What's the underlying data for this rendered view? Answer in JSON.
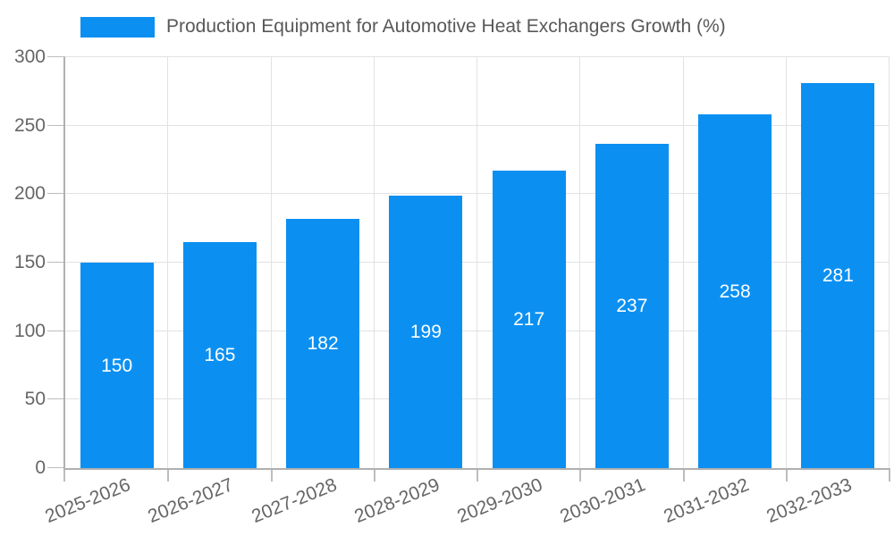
{
  "chart_data": {
    "type": "bar",
    "title": "Production Equipment for Automotive Heat Exchangers Growth (%)",
    "categories": [
      "2025-2026",
      "2026-2027",
      "2027-2028",
      "2028-2029",
      "2029-2030",
      "2030-2031",
      "2031-2032",
      "2032-2033"
    ],
    "series": [
      {
        "name": "Production Equipment for Automotive Heat Exchangers Growth (%)",
        "values": [
          150,
          165,
          182,
          199,
          217,
          237,
          258,
          281
        ]
      }
    ],
    "xlabel": "",
    "ylabel": "",
    "ylim": [
      0,
      300
    ],
    "yticks": [
      0,
      50,
      100,
      150,
      200,
      250,
      300
    ],
    "grid": true,
    "legend_position": "top",
    "bar_labels_visible": true,
    "colors": {
      "bar": "#0b90f2",
      "bar_label": "#ffffff",
      "grid": "#e2e2e2",
      "axis": "#b0b0b0",
      "tick": "#bdbdbd",
      "tick_label": "#666666",
      "title": "#58585a"
    }
  }
}
